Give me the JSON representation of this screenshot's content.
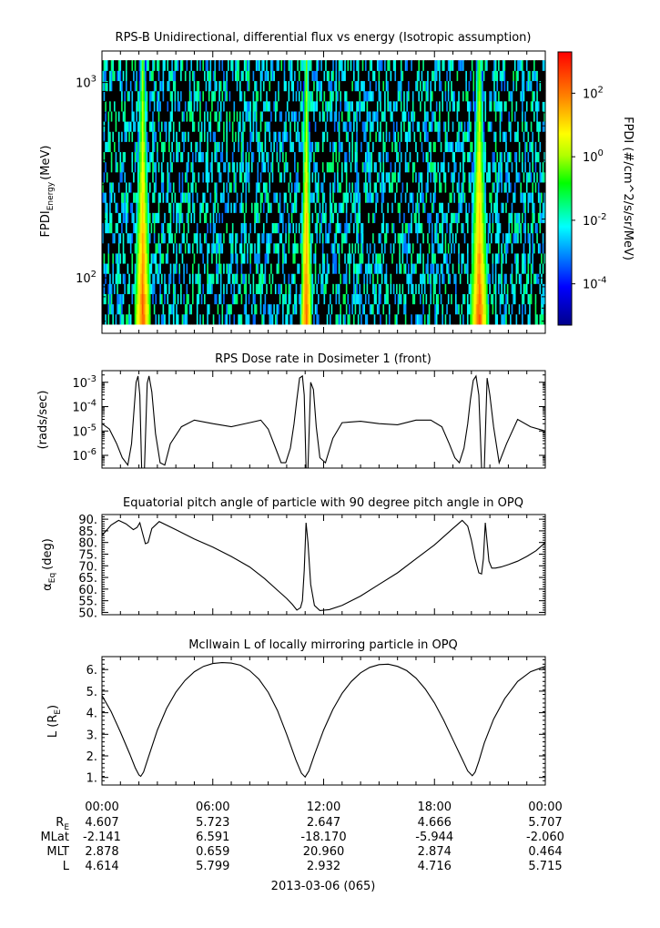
{
  "chart_data": [
    {
      "type": "heatmap",
      "title": "RPS-B  Unidirectional, differential flux vs energy (Isotropic assumption)",
      "ylabel_main": "FPDI",
      "ylabel_sub": "Energy",
      "ylabel_unit": "(MeV)",
      "y_scale": "log",
      "ylim": [
        52,
        1450
      ],
      "y_ticks": [
        {
          "value": 100,
          "base": "10",
          "exp": "2"
        },
        {
          "value": 1000,
          "base": "10",
          "exp": "3"
        }
      ],
      "x_range_hours": [
        0,
        24
      ],
      "colorbar": {
        "label": "FPDI (#/cm^2/s/sr/MeV)",
        "scale": "log",
        "range": [
          -5.3,
          3.3
        ],
        "ticks": [
          {
            "base": "10",
            "exp": "2",
            "value": 2
          },
          {
            "base": "10",
            "exp": "0",
            "value": 0
          },
          {
            "base": "10",
            "exp": "-2",
            "value": -2
          },
          {
            "base": "10",
            "exp": "-4",
            "value": -4
          }
        ]
      },
      "belt_crossings_hours": [
        1.83,
        2.58,
        10.83,
        11.3,
        20.0,
        20.85
      ]
    },
    {
      "type": "line",
      "title": "RPS  Dose rate in Dosimeter 1 (front)",
      "ylabel": "(rads/sec)",
      "y_scale": "log",
      "ylim": [
        3e-07,
        0.003
      ],
      "y_ticks": [
        {
          "base": "10",
          "exp": "-3",
          "value": -3
        },
        {
          "base": "10",
          "exp": "-4",
          "value": -4
        },
        {
          "base": "10",
          "exp": "-5",
          "value": -5
        },
        {
          "base": "10",
          "exp": "-6",
          "value": -6
        }
      ],
      "x_hours": [
        0,
        0.4,
        0.8,
        1.1,
        1.4,
        1.6,
        1.75,
        1.85,
        1.95,
        2.05,
        2.15,
        2.3,
        2.45,
        2.55,
        2.7,
        2.9,
        3.15,
        3.4,
        3.7,
        4.3,
        5.0,
        6.0,
        7.0,
        8.0,
        8.6,
        9.0,
        9.4,
        9.7,
        9.95,
        10.2,
        10.4,
        10.55,
        10.7,
        10.85,
        10.95,
        11.05,
        11.15,
        11.3,
        11.45,
        11.6,
        11.8,
        12.1,
        12.5,
        13.0,
        14.0,
        15.0,
        16.0,
        17.0,
        17.8,
        18.4,
        18.8,
        19.1,
        19.35,
        19.6,
        19.8,
        19.95,
        20.1,
        20.25,
        20.4,
        20.55,
        20.7,
        20.85,
        21.0,
        21.2,
        21.5,
        21.9,
        22.5,
        23.2,
        24.0
      ],
      "values": [
        2e-05,
        1.2e-05,
        3e-06,
        8e-07,
        4e-07,
        3e-06,
        0.0001,
        0.001,
        0.0018,
        0.0003,
        3e-07,
        3e-07,
        0.0009,
        0.0018,
        0.0004,
        8e-06,
        5e-07,
        4e-07,
        3e-06,
        1.5e-05,
        2.8e-05,
        2e-05,
        1.5e-05,
        2.2e-05,
        2.8e-05,
        1.2e-05,
        2e-06,
        5e-07,
        5e-07,
        2e-06,
        2e-05,
        0.0002,
        0.0015,
        0.0018,
        0.0003,
        3e-07,
        3e-07,
        0.001,
        0.0005,
        1.5e-05,
        8e-07,
        5e-07,
        5e-06,
        2.2e-05,
        2.5e-05,
        2e-05,
        1.8e-05,
        2.8e-05,
        2.8e-05,
        1.5e-05,
        3e-06,
        8e-07,
        5e-07,
        2e-06,
        2e-05,
        0.0002,
        0.0012,
        0.0018,
        0.0003,
        3e-07,
        3e-07,
        0.0015,
        0.0003,
        1.5e-05,
        5e-07,
        3e-06,
        3e-05,
        1.5e-05,
        1e-05
      ]
    },
    {
      "type": "line",
      "title": "Equatorial pitch angle of particle with 90 degree pitch angle in OPQ",
      "ylabel_main": "α",
      "ylabel_sub": "Eq",
      "ylabel_unit": "(deg)",
      "ylim": [
        49,
        92
      ],
      "y_ticks": [
        50,
        55,
        60,
        65,
        70,
        75,
        80,
        85,
        90
      ],
      "y_tick_labels": [
        "50.",
        "55.",
        "60.",
        "65.",
        "70.",
        "75.",
        "80.",
        "85.",
        "90."
      ],
      "x_hours": [
        0,
        0.5,
        0.9,
        1.3,
        1.7,
        1.9,
        2.05,
        2.2,
        2.35,
        2.5,
        2.7,
        3.1,
        4.0,
        5.0,
        6.0,
        7.0,
        8.0,
        8.8,
        9.5,
        10.0,
        10.3,
        10.55,
        10.75,
        10.85,
        10.95,
        11.05,
        11.15,
        11.3,
        11.5,
        11.8,
        12.3,
        13.0,
        14.0,
        15.0,
        16.0,
        17.0,
        18.0,
        19.0,
        19.5,
        19.8,
        20.0,
        20.2,
        20.4,
        20.55,
        20.65,
        20.75,
        20.85,
        20.95,
        21.1,
        21.3,
        21.6,
        22.0,
        22.5,
        23.0,
        23.5,
        24.0
      ],
      "values": [
        83,
        87.5,
        89.5,
        88,
        85.5,
        86.5,
        88.5,
        84,
        79.5,
        80,
        86,
        89,
        85.5,
        81.5,
        78,
        74,
        69.5,
        64.5,
        59.5,
        56,
        53.5,
        51,
        52,
        55,
        68,
        88.5,
        80,
        62,
        53,
        50.8,
        51.2,
        53,
        57,
        62,
        67,
        73,
        79,
        86,
        89.5,
        87,
        81,
        73,
        67,
        66.5,
        73,
        88.5,
        80,
        72,
        69,
        69,
        69.5,
        70.5,
        72,
        74,
        76.5,
        80
      ]
    },
    {
      "type": "line",
      "title": "McIlwain L of locally mirroring particle in OPQ",
      "ylabel_main": "L (R",
      "ylabel_sub": "E",
      "ylabel_unit": ")",
      "ylim": [
        0.65,
        6.6
      ],
      "y_ticks": [
        1,
        2,
        3,
        4,
        5,
        6
      ],
      "y_tick_labels": [
        "1.",
        "2.",
        "3.",
        "4.",
        "5.",
        "6."
      ],
      "x_hours": [
        0,
        0.5,
        1.0,
        1.5,
        1.8,
        2.0,
        2.1,
        2.25,
        2.5,
        3.0,
        3.5,
        4.0,
        4.5,
        5.0,
        5.5,
        6.0,
        6.5,
        7.0,
        7.5,
        8.0,
        8.5,
        9.0,
        9.5,
        10.0,
        10.5,
        10.8,
        11.0,
        11.2,
        11.5,
        12.0,
        12.5,
        13.0,
        13.5,
        14.0,
        14.5,
        15.0,
        15.5,
        16.0,
        16.5,
        17.0,
        17.5,
        18.0,
        18.5,
        19.0,
        19.5,
        19.8,
        20.05,
        20.2,
        20.4,
        20.7,
        21.2,
        21.8,
        22.5,
        23.2,
        24.0
      ],
      "values": [
        4.8,
        4.05,
        3.1,
        2.1,
        1.45,
        1.12,
        1.05,
        1.25,
        1.9,
        3.2,
        4.2,
        4.95,
        5.5,
        5.9,
        6.15,
        6.28,
        6.32,
        6.3,
        6.2,
        5.95,
        5.55,
        4.95,
        4.1,
        3.0,
        1.8,
        1.2,
        1.02,
        1.3,
        2.05,
        3.2,
        4.15,
        4.9,
        5.45,
        5.85,
        6.1,
        6.23,
        6.25,
        6.15,
        5.95,
        5.6,
        5.1,
        4.45,
        3.65,
        2.75,
        1.85,
        1.3,
        1.08,
        1.25,
        1.75,
        2.6,
        3.7,
        4.65,
        5.45,
        5.9,
        6.15
      ]
    }
  ],
  "x_axis": {
    "tick_hours": [
      0,
      6,
      12,
      18,
      24
    ],
    "tick_labels": [
      "00:00",
      "06:00",
      "12:00",
      "18:00",
      "00:00"
    ],
    "date_label": "2013-03-06 (065)"
  },
  "ephemeris": {
    "rows": [
      {
        "name_main": "R",
        "name_sub": "E",
        "values": [
          "4.607",
          "5.723",
          "2.647",
          "4.666",
          "5.707"
        ]
      },
      {
        "name_main": "MLat",
        "name_sub": "",
        "values": [
          "-2.141",
          "6.591",
          "-18.170",
          "-5.944",
          "-2.060"
        ]
      },
      {
        "name_main": "MLT",
        "name_sub": "",
        "values": [
          "2.878",
          "0.659",
          "20.960",
          "2.874",
          "0.464"
        ]
      },
      {
        "name_main": "L",
        "name_sub": "",
        "values": [
          "4.614",
          "5.799",
          "2.932",
          "4.716",
          "5.715"
        ]
      }
    ]
  }
}
